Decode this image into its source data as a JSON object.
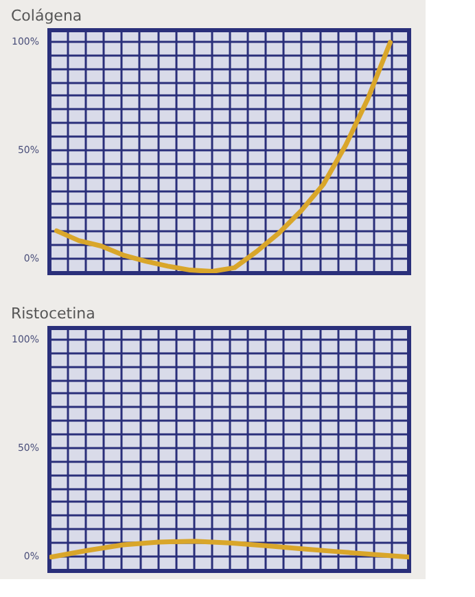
{
  "chart_data": [
    {
      "type": "line",
      "title": "Colágena",
      "categories": [
        null,
        null,
        null,
        null,
        null,
        null,
        null,
        null,
        null,
        null,
        null,
        null,
        null,
        null,
        null,
        null
      ],
      "series": [
        {
          "color": "#d9a62a",
          "values": [
            12.5,
            8,
            5.5,
            1.3,
            -1.5,
            -3.8,
            -5.6,
            -6.2,
            -4.5,
            3,
            11.5,
            21.8,
            34,
            52,
            73.5,
            99.4
          ]
        }
      ],
      "ylim": [
        -7,
        105
      ],
      "yticks": [
        {
          "value": 0,
          "label": "0%"
        },
        {
          "value": 6.25,
          "label": null
        },
        {
          "value": 12.5,
          "label": null
        },
        {
          "value": 18.75,
          "label": null
        },
        {
          "value": 25,
          "label": null
        },
        {
          "value": 31.25,
          "label": null
        },
        {
          "value": 37.5,
          "label": null
        },
        {
          "value": 43.75,
          "label": null
        },
        {
          "value": 50,
          "label": "50%"
        },
        {
          "value": 56.25,
          "label": null
        },
        {
          "value": 62.5,
          "label": null
        },
        {
          "value": 68.75,
          "label": null
        },
        {
          "value": 75,
          "label": null
        },
        {
          "value": 81.25,
          "label": null
        },
        {
          "value": 87.5,
          "label": null
        },
        {
          "value": 93.75,
          "label": null
        },
        {
          "value": 100,
          "label": "100%"
        }
      ],
      "grid": true,
      "tick_labels": "y",
      "marker": "none",
      "line_style": "solid"
    },
    {
      "type": "line",
      "title": "Ristocetina",
      "categories": [
        null,
        null,
        null,
        null,
        null,
        null,
        null,
        null,
        null,
        null,
        null
      ],
      "series": [
        {
          "color": "#d9a62a",
          "values": [
            -0.6,
            2.4,
            5,
            6.3,
            6.7,
            5.9,
            4.6,
            3.2,
            1.9,
            0.6,
            -0.6
          ]
        }
      ],
      "ylim": [
        -7,
        105
      ],
      "yticks": [
        {
          "value": 0,
          "label": "0%"
        },
        {
          "value": 6.25,
          "label": null
        },
        {
          "value": 12.5,
          "label": null
        },
        {
          "value": 18.75,
          "label": null
        },
        {
          "value": 25,
          "label": null
        },
        {
          "value": 31.25,
          "label": null
        },
        {
          "value": 37.5,
          "label": null
        },
        {
          "value": 43.75,
          "label": null
        },
        {
          "value": 50,
          "label": "50%"
        },
        {
          "value": 56.25,
          "label": null
        },
        {
          "value": 62.5,
          "label": null
        },
        {
          "value": 68.75,
          "label": null
        },
        {
          "value": 75,
          "label": null
        },
        {
          "value": 81.25,
          "label": null
        },
        {
          "value": 87.5,
          "label": null
        },
        {
          "value": 93.75,
          "label": null
        },
        {
          "value": 100,
          "label": "100%"
        }
      ],
      "grid": true,
      "tick_labels": "y",
      "marker": "none",
      "line_style": "solid"
    }
  ]
}
